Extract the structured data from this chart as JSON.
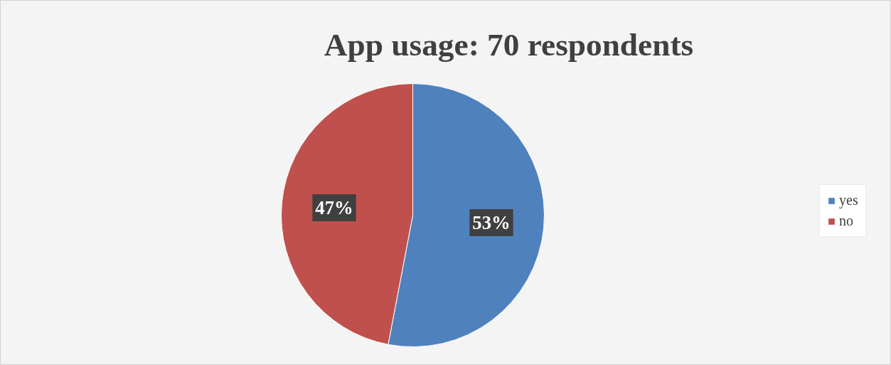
{
  "chart_data": {
    "type": "pie",
    "title": "App usage: 70 respondents",
    "categories": [
      "yes",
      "no"
    ],
    "values": [
      53,
      47
    ],
    "colors": [
      "#4f81bd",
      "#c0504d"
    ],
    "value_labels": [
      "53%",
      "47%"
    ],
    "legend": "right"
  }
}
